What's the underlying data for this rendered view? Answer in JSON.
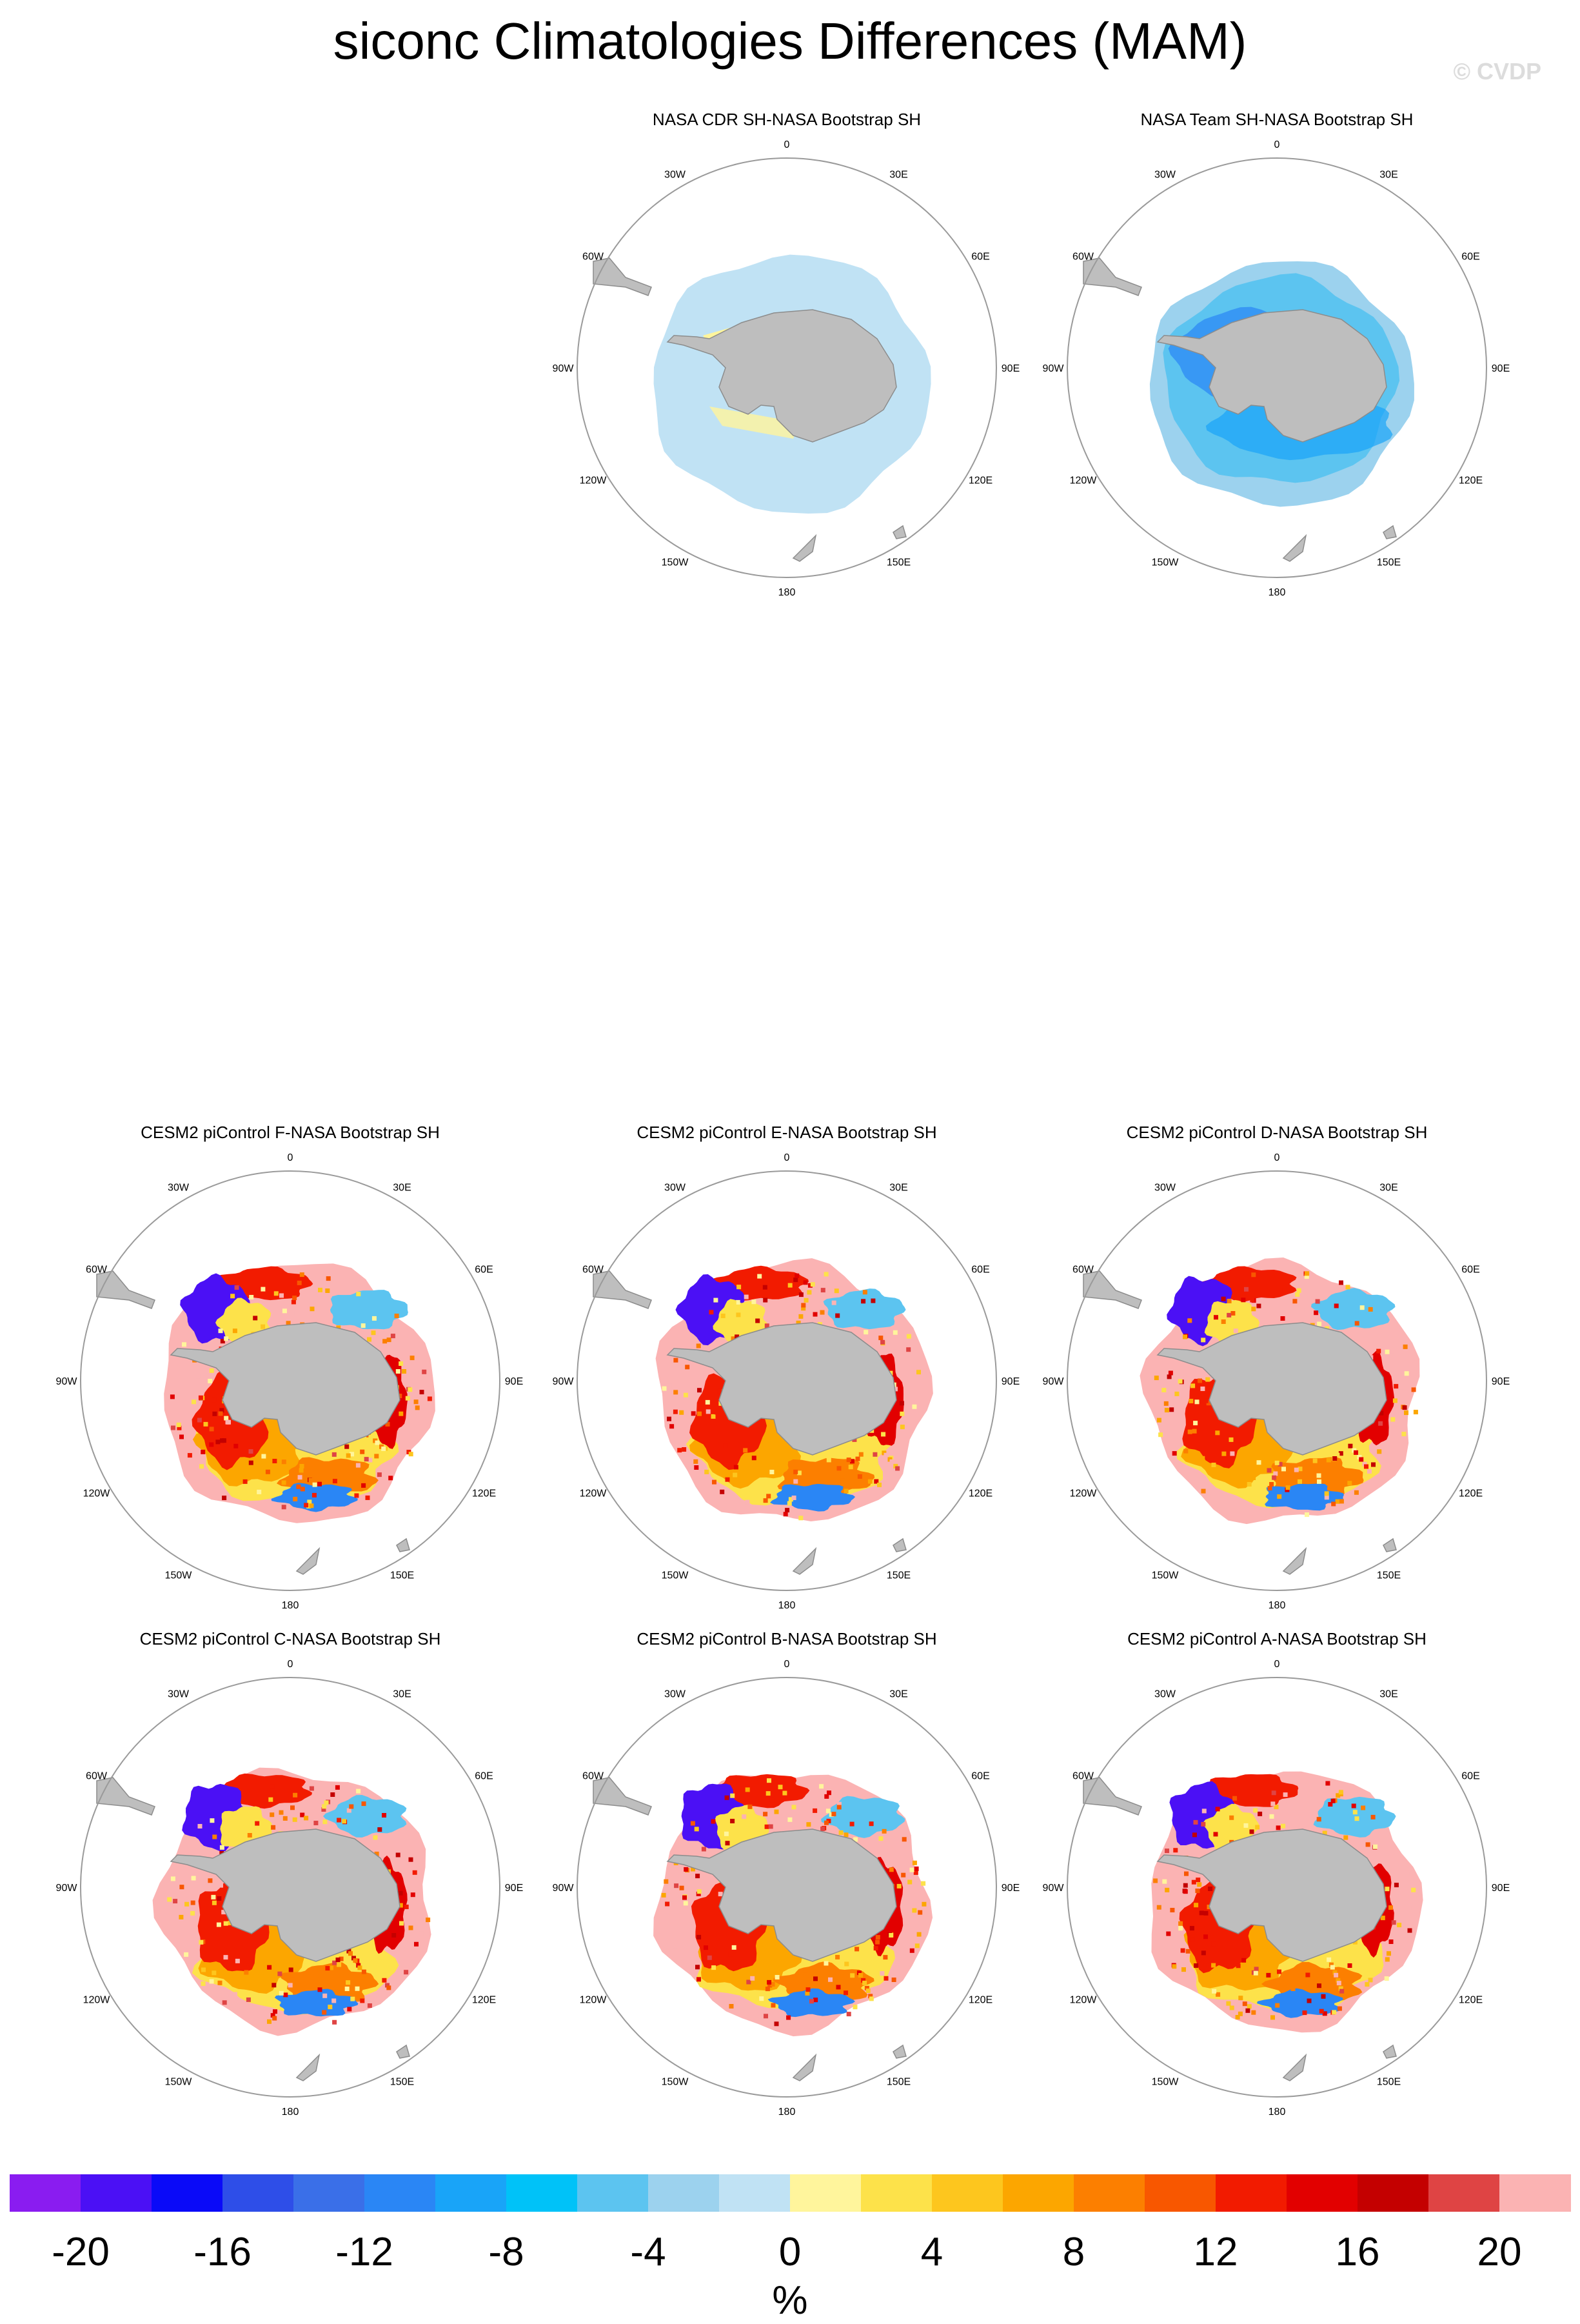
{
  "title": "siconc Climatologies Differences (MAM)",
  "credit": "© CVDP",
  "lon_labels": [
    "0",
    "30E",
    "60E",
    "90E",
    "120E",
    "150E",
    "180",
    "150W",
    "120W",
    "90W",
    "60W",
    "30W"
  ],
  "panels": [
    {
      "title": "NASA CDR SH-NASA Bootstrap SH",
      "style": "cdr"
    },
    {
      "title": "NASA Team SH-NASA Bootstrap SH",
      "style": "team"
    },
    {
      "title": "CESM2 piControl F-NASA Bootstrap SH",
      "style": "model"
    },
    {
      "title": "CESM2 piControl E-NASA Bootstrap SH",
      "style": "model"
    },
    {
      "title": "CESM2 piControl D-NASA Bootstrap SH",
      "style": "model"
    },
    {
      "title": "CESM2 piControl C-NASA Bootstrap SH",
      "style": "model"
    },
    {
      "title": "CESM2 piControl B-NASA Bootstrap SH",
      "style": "model"
    },
    {
      "title": "CESM2 piControl A-NASA Bootstrap SH",
      "style": "model"
    }
  ],
  "colorbar": {
    "colors": [
      "#8a1cf0",
      "#4b10f5",
      "#0a0af8",
      "#2e4ee8",
      "#3a6fe8",
      "#2a86f5",
      "#19a4f8",
      "#00c2f8",
      "#5cc4f0",
      "#9cd2ee",
      "#c0e2f4",
      "#fff59c",
      "#fde24a",
      "#fdc61e",
      "#fca600",
      "#fc7f00",
      "#f85700",
      "#f21b00",
      "#e20000",
      "#c40000",
      "#df4444",
      "#fbb3b3"
    ],
    "ticks": [
      "-20",
      "-16",
      "-12",
      "-8",
      "-4",
      "0",
      "4",
      "8",
      "12",
      "16",
      "20"
    ],
    "units": "%"
  }
}
